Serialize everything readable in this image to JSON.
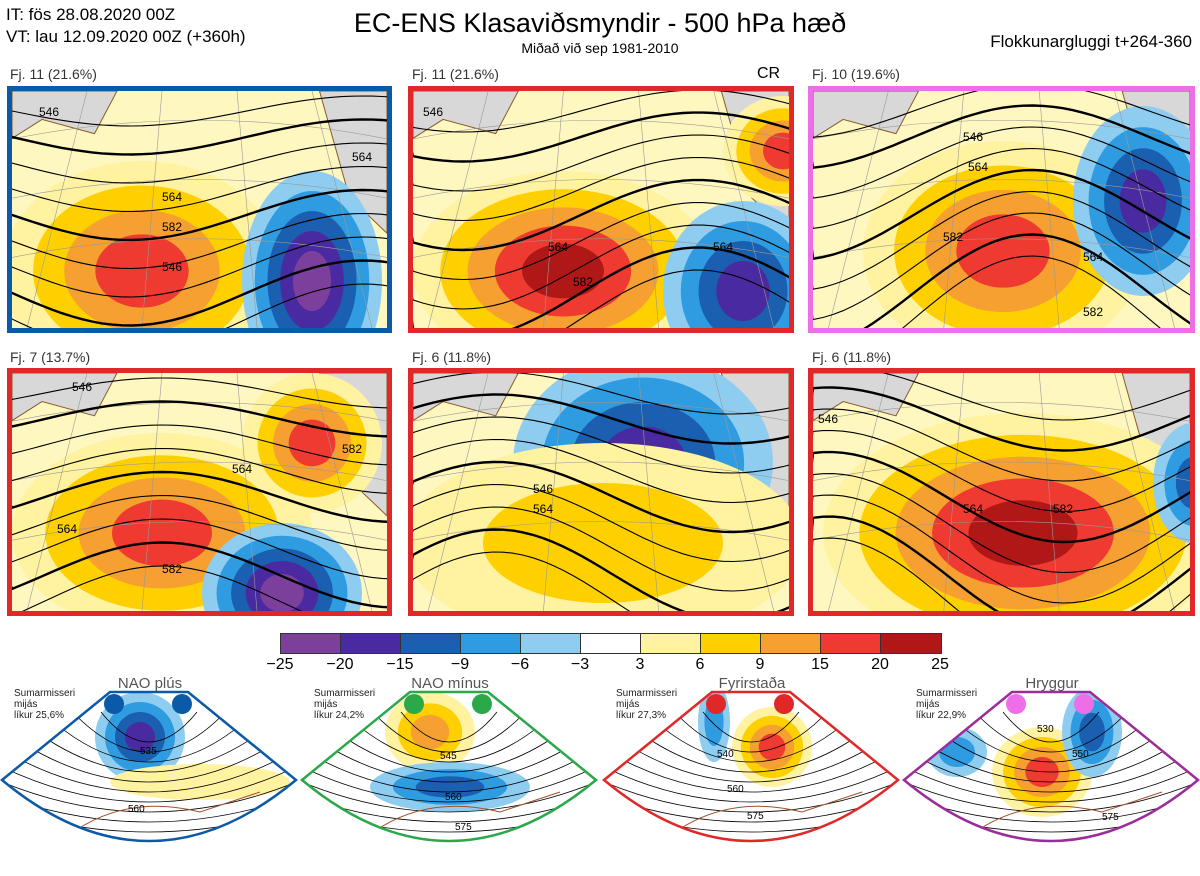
{
  "header": {
    "it_line": "IT: fös 28.08.2020 00Z",
    "vt_line": "VT: lau 12.09.2020 00Z  (+360h)",
    "title": "EC-ENS Klasaviðsmyndir - 500 hPa hæð",
    "subtitle": "Miðað við sep 1981-2010",
    "window": "Flokkunargluggi t+264-360"
  },
  "colors": {
    "nao_plus": "#0a5aa8",
    "nao_minus": "#2aa84a",
    "blocking": "#e02828",
    "ridge": "#ee6ee8",
    "ridge_border": "#9a2d9a"
  },
  "panels": [
    {
      "label": "Fj. 11 (21.6%)",
      "tag": "",
      "regime": "nao_plus",
      "contour_labels": [
        "546",
        "564",
        "582",
        "546",
        "564"
      ]
    },
    {
      "label": "Fj. 11 (21.6%)",
      "tag": "CR",
      "regime": "blocking",
      "contour_labels": [
        "546",
        "564",
        "582",
        "564"
      ]
    },
    {
      "label": "Fj. 10 (19.6%)",
      "tag": "",
      "regime": "ridge",
      "contour_labels": [
        "546",
        "564",
        "582",
        "564",
        "582"
      ]
    },
    {
      "label": "Fj. 7 (13.7%)",
      "tag": "",
      "regime": "blocking",
      "contour_labels": [
        "546",
        "564",
        "582",
        "564",
        "582"
      ]
    },
    {
      "label": "Fj. 6 (11.8%)",
      "tag": "",
      "regime": "blocking",
      "contour_labels": [
        "546",
        "564"
      ]
    },
    {
      "label": "Fj. 6 (11.8%)",
      "tag": "",
      "regime": "blocking",
      "contour_labels": [
        "546",
        "564",
        "582"
      ]
    }
  ],
  "colorbar": {
    "ticks": [
      "−25",
      "−20",
      "−15",
      "−9",
      "−6",
      "−3",
      "3",
      "6",
      "9",
      "15",
      "20",
      "25"
    ],
    "colors": [
      "#7d3f9c",
      "#4a2aa0",
      "#1a5fb0",
      "#2f9be0",
      "#8ecdf0",
      "#ffffff",
      "#fff2a0",
      "#ffd000",
      "#f5a030",
      "#ee3a30",
      "#b01818"
    ]
  },
  "regimes": [
    {
      "name": "NAO plús",
      "info": [
        "Sumarmisseri",
        "mijás",
        "líkur 25,6%"
      ],
      "color_key": "nao_plus",
      "contour_labels": [
        "535",
        "560"
      ]
    },
    {
      "name": "NAO mínus",
      "info": [
        "Sumarmisseri",
        "mijás",
        "líkur 24,2%"
      ],
      "color_key": "nao_minus",
      "contour_labels": [
        "545",
        "560",
        "575"
      ]
    },
    {
      "name": "Fyrirstaða",
      "info": [
        "Sumarmisseri",
        "mijás",
        "líkur 27,3%"
      ],
      "color_key": "blocking",
      "contour_labels": [
        "540",
        "560",
        "575"
      ]
    },
    {
      "name": "Hryggur",
      "info": [
        "Sumarmisseri",
        "mijás",
        "líkur 22,9%"
      ],
      "color_key": "ridge_border",
      "contour_labels": [
        "530",
        "550",
        "575"
      ]
    }
  ]
}
